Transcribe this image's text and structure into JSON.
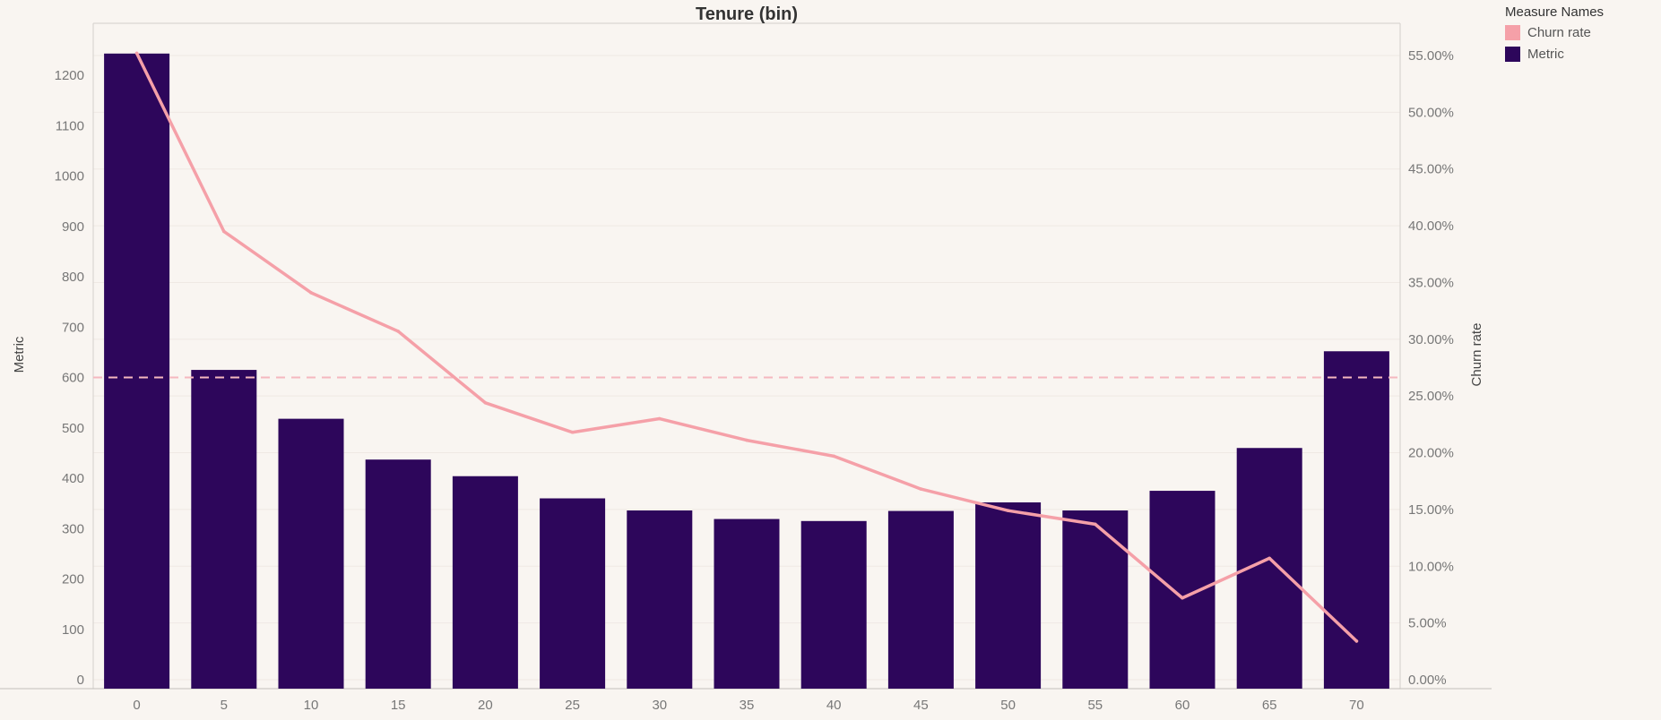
{
  "chart_data": {
    "type": "bar",
    "title": "Tenure (bin)",
    "xlabel": "",
    "ylabel": "Metric",
    "y2label": "Churn rate",
    "categories": [
      "0",
      "5",
      "10",
      "15",
      "20",
      "25",
      "30",
      "35",
      "40",
      "45",
      "50",
      "55",
      "60",
      "65",
      "70"
    ],
    "ylim": [
      0,
      1300
    ],
    "yticks": [
      0,
      100,
      200,
      300,
      400,
      500,
      600,
      700,
      800,
      900,
      1000,
      1100,
      1200
    ],
    "y2lim": [
      0,
      0.58
    ],
    "y2ticks": [
      "0.00%",
      "5.00%",
      "10.00%",
      "15.00%",
      "20.00%",
      "25.00%",
      "30.00%",
      "35.00%",
      "40.00%",
      "45.00%",
      "50.00%",
      "55.00%"
    ],
    "y2tick_values": [
      0,
      0.05,
      0.1,
      0.15,
      0.2,
      0.25,
      0.3,
      0.35,
      0.4,
      0.45,
      0.5,
      0.55
    ],
    "series": [
      {
        "name": "Metric",
        "type": "bar",
        "axis": "left",
        "color": "#2d065b",
        "values": [
          1243,
          615,
          518,
          437,
          404,
          360,
          336,
          319,
          315,
          335,
          352,
          336,
          375,
          460,
          652
        ]
      },
      {
        "name": "Churn rate",
        "type": "line",
        "axis": "right",
        "color": "#f5a0a8",
        "values": [
          0.552,
          0.395,
          0.341,
          0.307,
          0.244,
          0.218,
          0.23,
          0.211,
          0.197,
          0.168,
          0.149,
          0.137,
          0.072,
          0.107,
          0.034
        ]
      }
    ],
    "reference_line": {
      "axis": "left",
      "value": 600,
      "style": "dashed",
      "color": "#f5b8bf"
    },
    "grid": "horizontal",
    "legend": {
      "title": "Measure Names",
      "placement": "top-right",
      "items": [
        {
          "label": "Churn rate",
          "color": "#f5a0a8"
        },
        {
          "label": "Metric",
          "color": "#2d065b"
        }
      ]
    }
  }
}
